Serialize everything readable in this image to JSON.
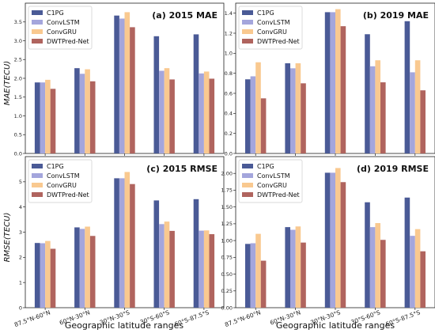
{
  "chart_data": {
    "type": "bar",
    "categories": [
      "87.5°N-60°N",
      "60°N-30°N",
      "30°N-30°S",
      "30°S-60°S",
      "60°S-87.5°S"
    ],
    "series_names": [
      "C1PG",
      "ConvLSTM",
      "ConvGRU",
      "DWTPred-Net"
    ],
    "colors": [
      "#4a5a96",
      "#a4a6dc",
      "#f9c990",
      "#b0645e"
    ],
    "xlabel": "Geographic latitude ranges",
    "ylabel_top": "MAE(TECU)",
    "ylabel_bottom": "RMSE(TECU)",
    "legend_position": "top-left",
    "panels": [
      {
        "title": "(a) 2015 MAE",
        "ylim": [
          0,
          4.0
        ],
        "yticks": [
          "0.0",
          "0.5",
          "1.0",
          "1.5",
          "2.0",
          "2.5",
          "3.0",
          "3.5"
        ],
        "series": [
          {
            "name": "C1PG",
            "values": [
              1.89,
              2.27,
              3.67,
              3.12,
              3.17
            ]
          },
          {
            "name": "ConvLSTM",
            "values": [
              1.89,
              2.12,
              3.59,
              2.2,
              2.13
            ]
          },
          {
            "name": "ConvGRU",
            "values": [
              1.96,
              2.24,
              3.76,
              2.27,
              2.18
            ]
          },
          {
            "name": "DWTPred-Net",
            "values": [
              1.72,
              1.92,
              3.36,
              1.97,
              1.99
            ]
          }
        ]
      },
      {
        "title": "(b) 2019 MAE",
        "ylim": [
          0,
          1.5
        ],
        "yticks": [
          "0.0",
          "0.2",
          "0.4",
          "0.6",
          "0.8",
          "1.0",
          "1.2",
          "1.4"
        ],
        "series": [
          {
            "name": "C1PG",
            "values": [
              0.74,
              0.9,
              1.41,
              1.19,
              1.32
            ]
          },
          {
            "name": "ConvLSTM",
            "values": [
              0.77,
              0.85,
              1.41,
              0.87,
              0.81
            ]
          },
          {
            "name": "ConvGRU",
            "values": [
              0.91,
              0.9,
              1.44,
              0.93,
              0.93
            ]
          },
          {
            "name": "DWTPred-Net",
            "values": [
              0.55,
              0.7,
              1.27,
              0.71,
              0.63
            ]
          }
        ]
      },
      {
        "title": "(c) 2015 RMSE",
        "ylim": [
          0,
          6.0
        ],
        "yticks": [
          "0",
          "1",
          "2",
          "3",
          "4",
          "5"
        ],
        "series": [
          {
            "name": "C1PG",
            "values": [
              2.57,
              3.19,
              5.14,
              4.26,
              4.31
            ]
          },
          {
            "name": "ConvLSTM",
            "values": [
              2.56,
              3.13,
              5.14,
              3.32,
              3.06
            ]
          },
          {
            "name": "ConvGRU",
            "values": [
              2.65,
              3.22,
              5.39,
              3.42,
              3.07
            ]
          },
          {
            "name": "DWTPred-Net",
            "values": [
              2.34,
              2.85,
              4.91,
              3.05,
              2.92
            ]
          }
        ]
      },
      {
        "title": "(d) 2019 RMSE",
        "ylim": [
          0,
          2.25
        ],
        "yticks": [
          "0.00",
          "0.25",
          "0.50",
          "0.75",
          "1.00",
          "1.25",
          "1.50",
          "1.75",
          "2.00"
        ],
        "series": [
          {
            "name": "C1PG",
            "values": [
              0.95,
              1.2,
              2.01,
              1.57,
              1.64
            ]
          },
          {
            "name": "ConvLSTM",
            "values": [
              0.96,
              1.16,
              2.01,
              1.2,
              1.07
            ]
          },
          {
            "name": "ConvGRU",
            "values": [
              1.1,
              1.21,
              2.08,
              1.26,
              1.17
            ]
          },
          {
            "name": "DWTPred-Net",
            "values": [
              0.7,
              0.97,
              1.87,
              1.01,
              0.84
            ]
          }
        ]
      }
    ]
  }
}
